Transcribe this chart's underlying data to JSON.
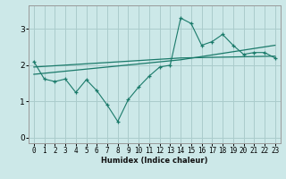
{
  "xlabel": "Humidex (Indice chaleur)",
  "bg_color": "#cce8e8",
  "grid_color": "#aacccc",
  "line_color": "#1a7a6a",
  "xlim": [
    -0.5,
    23.5
  ],
  "ylim": [
    -0.15,
    3.65
  ],
  "xticks": [
    0,
    1,
    2,
    3,
    4,
    5,
    6,
    7,
    8,
    9,
    10,
    11,
    12,
    13,
    14,
    15,
    16,
    17,
    18,
    19,
    20,
    21,
    22,
    23
  ],
  "yticks": [
    0,
    1,
    2,
    3
  ],
  "main_x": [
    0,
    1,
    2,
    3,
    4,
    5,
    6,
    7,
    8,
    9,
    10,
    11,
    12,
    13,
    14,
    15,
    16,
    17,
    18,
    19,
    20,
    21,
    22,
    23
  ],
  "main_y": [
    2.1,
    1.62,
    1.55,
    1.62,
    1.25,
    1.6,
    1.3,
    0.9,
    0.45,
    1.05,
    1.4,
    1.7,
    1.95,
    2.0,
    3.3,
    3.15,
    2.55,
    2.65,
    2.85,
    2.55,
    2.3,
    2.35,
    2.35,
    2.2
  ],
  "trend1_x": [
    0,
    14,
    23
  ],
  "trend1_y": [
    1.95,
    2.2,
    2.25
  ],
  "trend2_x": [
    0,
    14,
    23
  ],
  "trend2_y": [
    1.75,
    2.15,
    2.55
  ],
  "xlabel_fontsize": 6,
  "xlabel_fontweight": "bold",
  "tick_fontsize": 5.5,
  "ytick_fontsize": 6.5
}
